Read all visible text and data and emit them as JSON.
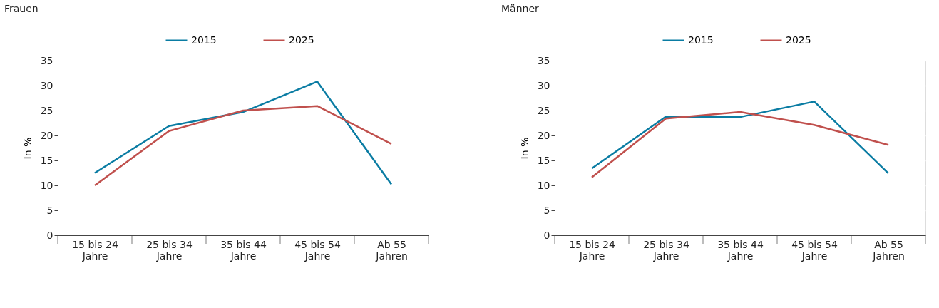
{
  "chart_data": [
    {
      "type": "line",
      "title": "Frauen",
      "ylabel": "In %",
      "categories": [
        "15 bis 24 Jahre",
        "25 bis 34 Jahre",
        "35 bis 44 Jahre",
        "45 bis 54 Jahre",
        "Ab 55 Jahren"
      ],
      "series": [
        {
          "name": "2015",
          "color": "#0a7ca3",
          "values": [
            12.5,
            21.9,
            24.7,
            30.8,
            10.2
          ]
        },
        {
          "name": "2025",
          "color": "#c0504d",
          "values": [
            10.0,
            20.9,
            25.0,
            25.9,
            18.3
          ]
        }
      ],
      "ylim": [
        0,
        35
      ],
      "yticks": [
        0,
        5,
        10,
        15,
        20,
        25,
        30,
        35
      ],
      "grid": "y",
      "legend": "top",
      "marker": "none",
      "line_style": "solid"
    },
    {
      "type": "line",
      "title": "Männer",
      "ylabel": "In %",
      "categories": [
        "15 bis 24 Jahre",
        "25 bis 34 Jahre",
        "35 bis 44 Jahre",
        "45 bis 54 Jahre",
        "Ab 55 Jahren"
      ],
      "series": [
        {
          "name": "2015",
          "color": "#0a7ca3",
          "values": [
            13.4,
            23.8,
            23.7,
            26.8,
            12.4
          ]
        },
        {
          "name": "2025",
          "color": "#c0504d",
          "values": [
            11.6,
            23.4,
            24.7,
            22.1,
            18.1
          ]
        }
      ],
      "ylim": [
        0,
        35
      ],
      "yticks": [
        0,
        5,
        10,
        15,
        20,
        25,
        30,
        35
      ],
      "grid": "y",
      "legend": "top",
      "marker": "none",
      "line_style": "solid"
    }
  ]
}
